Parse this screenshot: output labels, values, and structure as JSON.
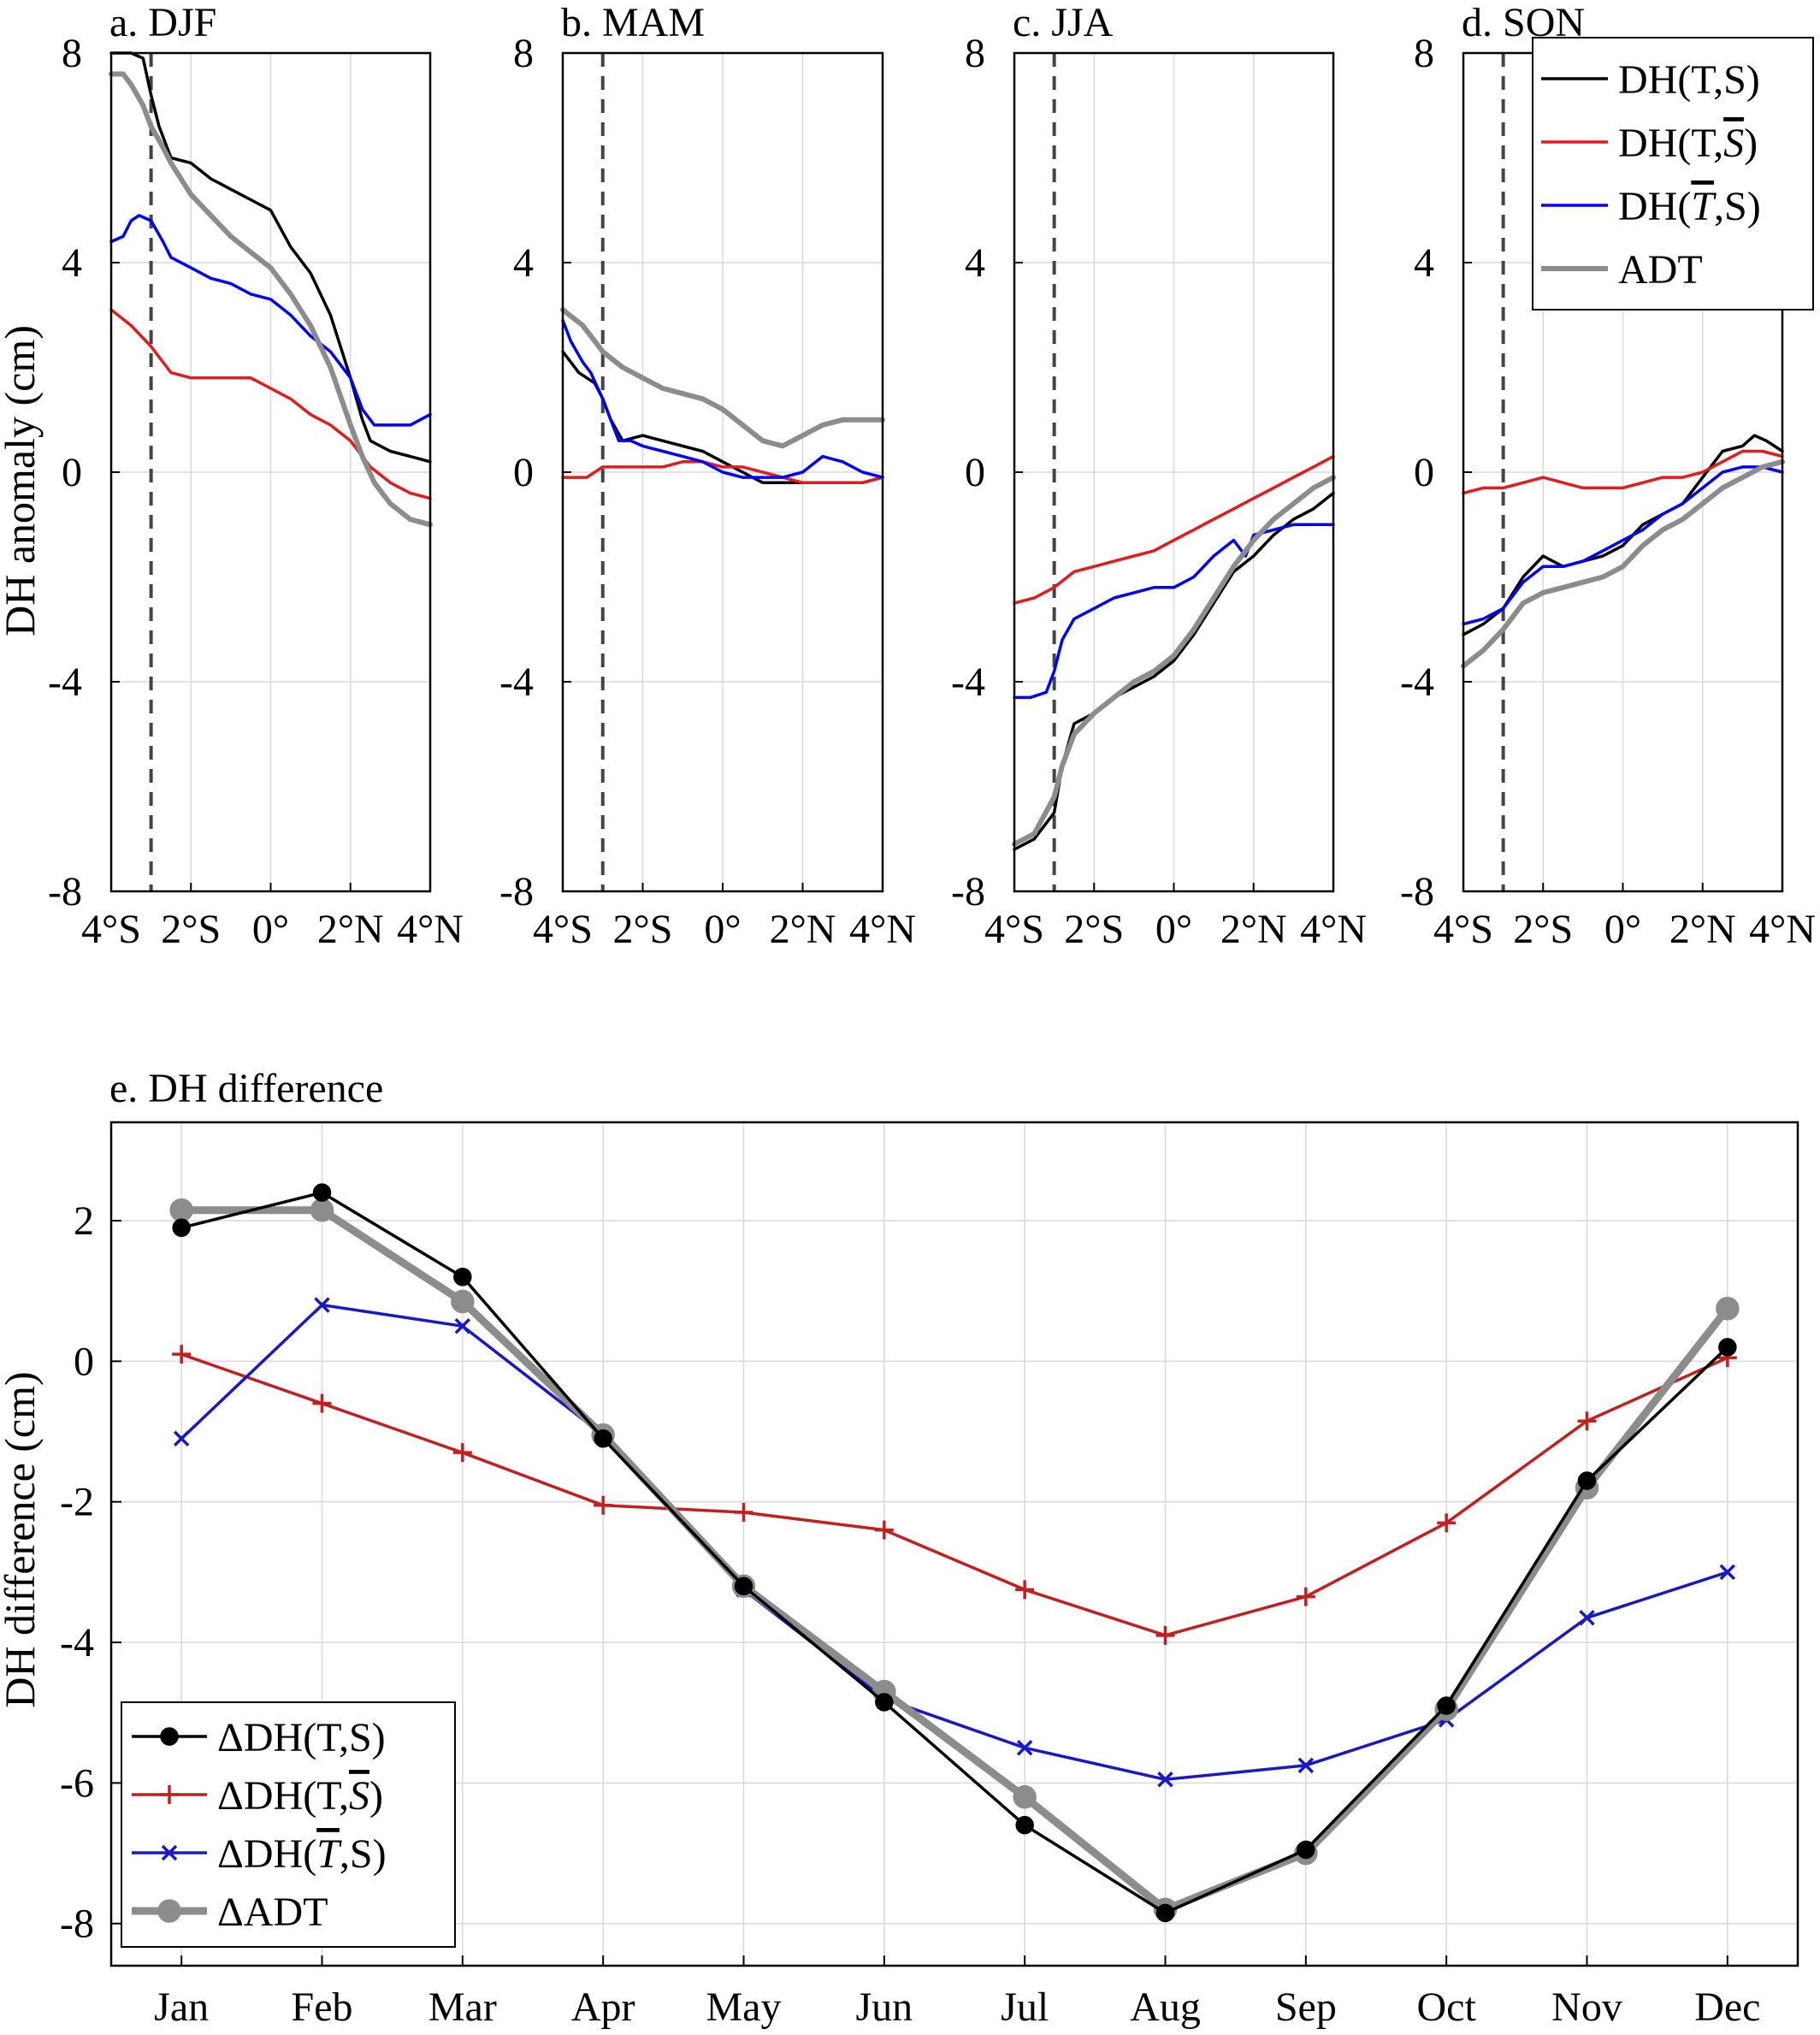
{
  "figure": {
    "ylabel_top": "DH anomaly (cm)",
    "ylabel_bottom": "DH difference (cm)"
  },
  "chart_data": [
    {
      "type": "line",
      "title": "a. DJF",
      "xlabel": "",
      "ylabel": "DH anomaly (cm)",
      "xlim": [
        -4,
        4
      ],
      "ylim": [
        -8,
        8
      ],
      "xticks": [
        -4,
        -2,
        0,
        2,
        4
      ],
      "xtick_labels": [
        "4°S",
        "2°S",
        "0°",
        "2°N",
        "4°N"
      ],
      "yticks": [
        -8,
        -4,
        0,
        4,
        8
      ],
      "ytick_labels": [
        "-8",
        "-4",
        "0",
        "4",
        "8"
      ],
      "grid": true,
      "reference_line_x": -3,
      "series": [
        {
          "name": "DH(T,S)",
          "color": "#000000",
          "x": [
            -4,
            -3.8,
            -3.5,
            -3.2,
            -3,
            -2.8,
            -2.5,
            -2,
            -1.5,
            -1,
            -0.5,
            0,
            0.5,
            1,
            1.5,
            2,
            2.3,
            2.5,
            3,
            3.5,
            4
          ],
          "y": [
            8.0,
            8.0,
            8.0,
            7.9,
            7.2,
            6.6,
            6.0,
            5.9,
            5.6,
            5.4,
            5.2,
            5.0,
            4.3,
            3.8,
            3.0,
            1.8,
            1.0,
            0.6,
            0.4,
            0.3,
            0.2
          ]
        },
        {
          "name": "DH(T,S̄)",
          "color": "#e41a1c",
          "x": [
            -4,
            -3.5,
            -3,
            -2.5,
            -2,
            -1.5,
            -1,
            -0.5,
            0,
            0.5,
            1,
            1.5,
            2,
            2.5,
            3,
            3.5,
            4
          ],
          "y": [
            3.1,
            2.8,
            2.4,
            1.9,
            1.8,
            1.8,
            1.8,
            1.8,
            1.6,
            1.4,
            1.1,
            0.9,
            0.6,
            0.1,
            -0.2,
            -0.4,
            -0.5
          ]
        },
        {
          "name": "DH(T̄,S)",
          "color": "#0000ff",
          "x": [
            -4,
            -3.7,
            -3.5,
            -3.3,
            -3,
            -2.7,
            -2.5,
            -2,
            -1.5,
            -1,
            -0.5,
            0,
            0.5,
            1,
            1.5,
            2,
            2.3,
            2.6,
            3,
            3.5,
            4
          ],
          "y": [
            4.4,
            4.5,
            4.8,
            4.9,
            4.8,
            4.4,
            4.1,
            3.9,
            3.7,
            3.6,
            3.4,
            3.3,
            3.0,
            2.6,
            2.3,
            1.8,
            1.2,
            0.9,
            0.9,
            0.9,
            1.1
          ]
        },
        {
          "name": "ADT",
          "color": "#8c8c8c",
          "x": [
            -4,
            -3.7,
            -3.5,
            -3.2,
            -3,
            -2.7,
            -2.5,
            -2,
            -1.5,
            -1,
            -0.5,
            0,
            0.5,
            1,
            1.5,
            2,
            2.3,
            2.6,
            3,
            3.5,
            4
          ],
          "y": [
            7.6,
            7.6,
            7.4,
            7.0,
            6.6,
            6.2,
            5.9,
            5.3,
            4.9,
            4.5,
            4.2,
            3.9,
            3.4,
            2.8,
            2.0,
            0.9,
            0.3,
            -0.2,
            -0.6,
            -0.9,
            -1.0
          ]
        }
      ]
    },
    {
      "type": "line",
      "title": "b. MAM",
      "xlabel": "",
      "ylabel": "",
      "xlim": [
        -4,
        4
      ],
      "ylim": [
        -8,
        8
      ],
      "xticks": [
        -4,
        -2,
        0,
        2,
        4
      ],
      "xtick_labels": [
        "4°S",
        "2°S",
        "0°",
        "2°N",
        "4°N"
      ],
      "yticks": [
        -8,
        -4,
        0,
        4,
        8
      ],
      "ytick_labels": [
        "-8",
        "-4",
        "0",
        "4",
        "8"
      ],
      "grid": true,
      "reference_line_x": -3,
      "series": [
        {
          "name": "DH(T,S)",
          "color": "#000000",
          "x": [
            -4,
            -3.6,
            -3.2,
            -3,
            -2.8,
            -2.5,
            -2,
            -1.5,
            -1,
            -0.5,
            0,
            0.5,
            1,
            1.5,
            2,
            2.5,
            3,
            3.5,
            4
          ],
          "y": [
            2.3,
            1.9,
            1.7,
            1.4,
            1.0,
            0.6,
            0.7,
            0.6,
            0.5,
            0.4,
            0.2,
            0.0,
            -0.2,
            -0.2,
            -0.2,
            -0.2,
            -0.2,
            -0.2,
            -0.1
          ]
        },
        {
          "name": "DH(T,S̄)",
          "color": "#e41a1c",
          "x": [
            -4,
            -3.6,
            -3.4,
            -3,
            -2.6,
            -2,
            -1.5,
            -1,
            -0.5,
            0,
            0.5,
            1,
            1.5,
            2,
            2.5,
            3,
            3.5,
            4
          ],
          "y": [
            -0.1,
            -0.1,
            -0.1,
            0.1,
            0.1,
            0.1,
            0.1,
            0.2,
            0.2,
            0.1,
            0.1,
            0.0,
            -0.1,
            -0.2,
            -0.2,
            -0.2,
            -0.2,
            -0.1
          ]
        },
        {
          "name": "DH(T̄,S)",
          "color": "#0000ff",
          "x": [
            -4,
            -3.8,
            -3.5,
            -3.3,
            -3,
            -2.8,
            -2.6,
            -2.3,
            -2,
            -1.5,
            -1,
            -0.5,
            0,
            0.5,
            1,
            1.5,
            2,
            2.5,
            3,
            3.5,
            4
          ],
          "y": [
            2.9,
            2.5,
            2.1,
            1.9,
            1.4,
            1.0,
            0.6,
            0.6,
            0.5,
            0.4,
            0.3,
            0.2,
            0.0,
            -0.1,
            -0.1,
            -0.1,
            0.0,
            0.3,
            0.2,
            0.0,
            -0.1
          ]
        },
        {
          "name": "ADT",
          "color": "#8c8c8c",
          "x": [
            -4,
            -3.5,
            -3,
            -2.5,
            -2,
            -1.5,
            -1,
            -0.5,
            0,
            0.5,
            1,
            1.5,
            2,
            2.5,
            3,
            3.5,
            4
          ],
          "y": [
            3.1,
            2.8,
            2.3,
            2.0,
            1.8,
            1.6,
            1.5,
            1.4,
            1.2,
            0.9,
            0.6,
            0.5,
            0.7,
            0.9,
            1.0,
            1.0,
            1.0
          ]
        }
      ]
    },
    {
      "type": "line",
      "title": "c. JJA",
      "xlabel": "",
      "ylabel": "",
      "xlim": [
        -4,
        4
      ],
      "ylim": [
        -8,
        8
      ],
      "xticks": [
        -4,
        -2,
        0,
        2,
        4
      ],
      "xtick_labels": [
        "4°S",
        "2°S",
        "0°",
        "2°N",
        "4°N"
      ],
      "yticks": [
        -8,
        -4,
        0,
        4,
        8
      ],
      "ytick_labels": [
        "-8",
        "-4",
        "0",
        "4",
        "8"
      ],
      "grid": true,
      "reference_line_x": -3,
      "series": [
        {
          "name": "DH(T,S)",
          "color": "#000000",
          "x": [
            -4,
            -3.5,
            -3,
            -2.8,
            -2.5,
            -2,
            -1.5,
            -1,
            -0.5,
            0,
            0.5,
            1,
            1.5,
            2,
            2.5,
            3,
            3.5,
            4
          ],
          "y": [
            -7.2,
            -7.0,
            -6.5,
            -5.6,
            -4.8,
            -4.6,
            -4.3,
            -4.1,
            -3.9,
            -3.6,
            -3.1,
            -2.5,
            -1.9,
            -1.6,
            -1.2,
            -0.9,
            -0.7,
            -0.4
          ]
        },
        {
          "name": "DH(T,S̄)",
          "color": "#e41a1c",
          "x": [
            -4,
            -3.5,
            -3,
            -2.5,
            -2,
            -1.5,
            -1,
            -0.5,
            0,
            0.5,
            1,
            1.5,
            2,
            2.5,
            3,
            3.5,
            4
          ],
          "y": [
            -2.5,
            -2.4,
            -2.2,
            -1.9,
            -1.8,
            -1.7,
            -1.6,
            -1.5,
            -1.3,
            -1.1,
            -0.9,
            -0.7,
            -0.5,
            -0.3,
            -0.1,
            0.1,
            0.3
          ]
        },
        {
          "name": "DH(T̄,S)",
          "color": "#0000ff",
          "x": [
            -4,
            -3.6,
            -3.2,
            -3,
            -2.8,
            -2.5,
            -2,
            -1.5,
            -1,
            -0.5,
            -0.2,
            0,
            0.5,
            1,
            1.5,
            1.8,
            2,
            2.5,
            3,
            3.5,
            4
          ],
          "y": [
            -4.3,
            -4.3,
            -4.2,
            -3.8,
            -3.2,
            -2.8,
            -2.6,
            -2.4,
            -2.3,
            -2.2,
            -2.2,
            -2.2,
            -2.0,
            -1.6,
            -1.3,
            -1.6,
            -1.2,
            -1.1,
            -1.0,
            -1.0,
            -1.0
          ]
        },
        {
          "name": "ADT",
          "color": "#8c8c8c",
          "x": [
            -4,
            -3.5,
            -3,
            -2.8,
            -2.5,
            -2,
            -1.5,
            -1,
            -0.5,
            0,
            0.5,
            1,
            1.5,
            2,
            2.5,
            3,
            3.5,
            4
          ],
          "y": [
            -7.1,
            -6.9,
            -6.2,
            -5.6,
            -5.0,
            -4.6,
            -4.3,
            -4.0,
            -3.8,
            -3.5,
            -3.0,
            -2.4,
            -1.8,
            -1.3,
            -0.9,
            -0.6,
            -0.3,
            -0.1
          ]
        }
      ]
    },
    {
      "type": "line",
      "title": "d. SON",
      "xlabel": "",
      "ylabel": "",
      "xlim": [
        -4,
        4
      ],
      "ylim": [
        -8,
        8
      ],
      "xticks": [
        -4,
        -2,
        0,
        2,
        4
      ],
      "xtick_labels": [
        "4°S",
        "2°S",
        "0°",
        "2°N",
        "4°N"
      ],
      "yticks": [
        -8,
        -4,
        0,
        4,
        8
      ],
      "ytick_labels": [
        "-8",
        "-4",
        "0",
        "4",
        "8"
      ],
      "grid": true,
      "reference_line_x": -3,
      "legend": "top-right",
      "series": [
        {
          "name": "DH(T,S)",
          "color": "#000000",
          "x": [
            -4,
            -3.5,
            -3,
            -2.5,
            -2,
            -1.5,
            -1,
            -0.5,
            0,
            0.5,
            1,
            1.5,
            2,
            2.5,
            3,
            3.3,
            3.6,
            4
          ],
          "y": [
            -3.1,
            -2.9,
            -2.6,
            -2.0,
            -1.6,
            -1.8,
            -1.7,
            -1.6,
            -1.4,
            -1.0,
            -0.8,
            -0.6,
            -0.1,
            0.4,
            0.5,
            0.7,
            0.6,
            0.4
          ]
        },
        {
          "name": "DH(T,S̄)",
          "color": "#e41a1c",
          "x": [
            -4,
            -3.5,
            -3,
            -2.5,
            -2,
            -1.5,
            -1,
            -0.5,
            0,
            0.5,
            1,
            1.5,
            2,
            2.5,
            3,
            3.5,
            4
          ],
          "y": [
            -0.4,
            -0.3,
            -0.3,
            -0.2,
            -0.1,
            -0.2,
            -0.3,
            -0.3,
            -0.3,
            -0.2,
            -0.1,
            -0.1,
            0.0,
            0.2,
            0.4,
            0.4,
            0.3
          ]
        },
        {
          "name": "DH(T̄,S)",
          "color": "#0000ff",
          "x": [
            -4,
            -3.5,
            -3,
            -2.5,
            -2,
            -1.5,
            -1,
            -0.5,
            0,
            0.5,
            1,
            1.5,
            2,
            2.5,
            3,
            3.5,
            4
          ],
          "y": [
            -2.9,
            -2.8,
            -2.6,
            -2.1,
            -1.8,
            -1.8,
            -1.7,
            -1.5,
            -1.3,
            -1.1,
            -0.8,
            -0.6,
            -0.3,
            0.0,
            0.1,
            0.1,
            0.0
          ]
        },
        {
          "name": "ADT",
          "color": "#8c8c8c",
          "x": [
            -4,
            -3.5,
            -3,
            -2.5,
            -2,
            -1.5,
            -1,
            -0.5,
            0,
            0.5,
            1,
            1.5,
            2,
            2.5,
            3,
            3.5,
            4
          ],
          "y": [
            -3.7,
            -3.4,
            -3.0,
            -2.5,
            -2.3,
            -2.2,
            -2.1,
            -2.0,
            -1.8,
            -1.4,
            -1.1,
            -0.9,
            -0.6,
            -0.3,
            -0.1,
            0.1,
            0.2
          ]
        }
      ]
    },
    {
      "type": "line",
      "title": "e. DH difference",
      "xlabel": "",
      "ylabel": "DH difference (cm)",
      "categories": [
        "Jan",
        "Feb",
        "Mar",
        "Apr",
        "May",
        "Jun",
        "Jul",
        "Aug",
        "Sep",
        "Oct",
        "Nov",
        "Dec"
      ],
      "ylim": [
        -8.6,
        3.4
      ],
      "yticks": [
        -8,
        -6,
        -4,
        -2,
        0,
        2
      ],
      "ytick_labels": [
        "-8",
        "-6",
        "-4",
        "-2",
        "0",
        "2"
      ],
      "grid": true,
      "legend": "bottom-left",
      "series": [
        {
          "name": "ΔDH(T,S)",
          "color": "#000000",
          "marker": "circle",
          "values": [
            1.9,
            2.4,
            1.2,
            -1.1,
            -3.2,
            -4.85,
            -6.6,
            -7.85,
            -6.95,
            -4.9,
            -1.7,
            0.2
          ]
        },
        {
          "name": "ΔDH(T,S̄)",
          "color": "#c41e1e",
          "marker": "plus",
          "values": [
            0.1,
            -0.6,
            -1.3,
            -2.05,
            -2.15,
            -2.4,
            -3.25,
            -3.9,
            -3.35,
            -2.3,
            -0.85,
            0.05
          ]
        },
        {
          "name": "ΔDH(T̄,S)",
          "color": "#1818c8",
          "marker": "x",
          "values": [
            -1.1,
            0.8,
            0.5,
            -1.05,
            -3.25,
            -4.8,
            -5.5,
            -5.95,
            -5.75,
            -5.1,
            -3.65,
            -3.0
          ]
        },
        {
          "name": "ΔADT",
          "color": "#8c8c8c",
          "marker": "circle",
          "values": [
            2.15,
            2.15,
            0.85,
            -1.05,
            -3.2,
            -4.7,
            -6.2,
            -7.8,
            -7.0,
            -4.95,
            -1.8,
            0.75
          ]
        }
      ]
    }
  ]
}
